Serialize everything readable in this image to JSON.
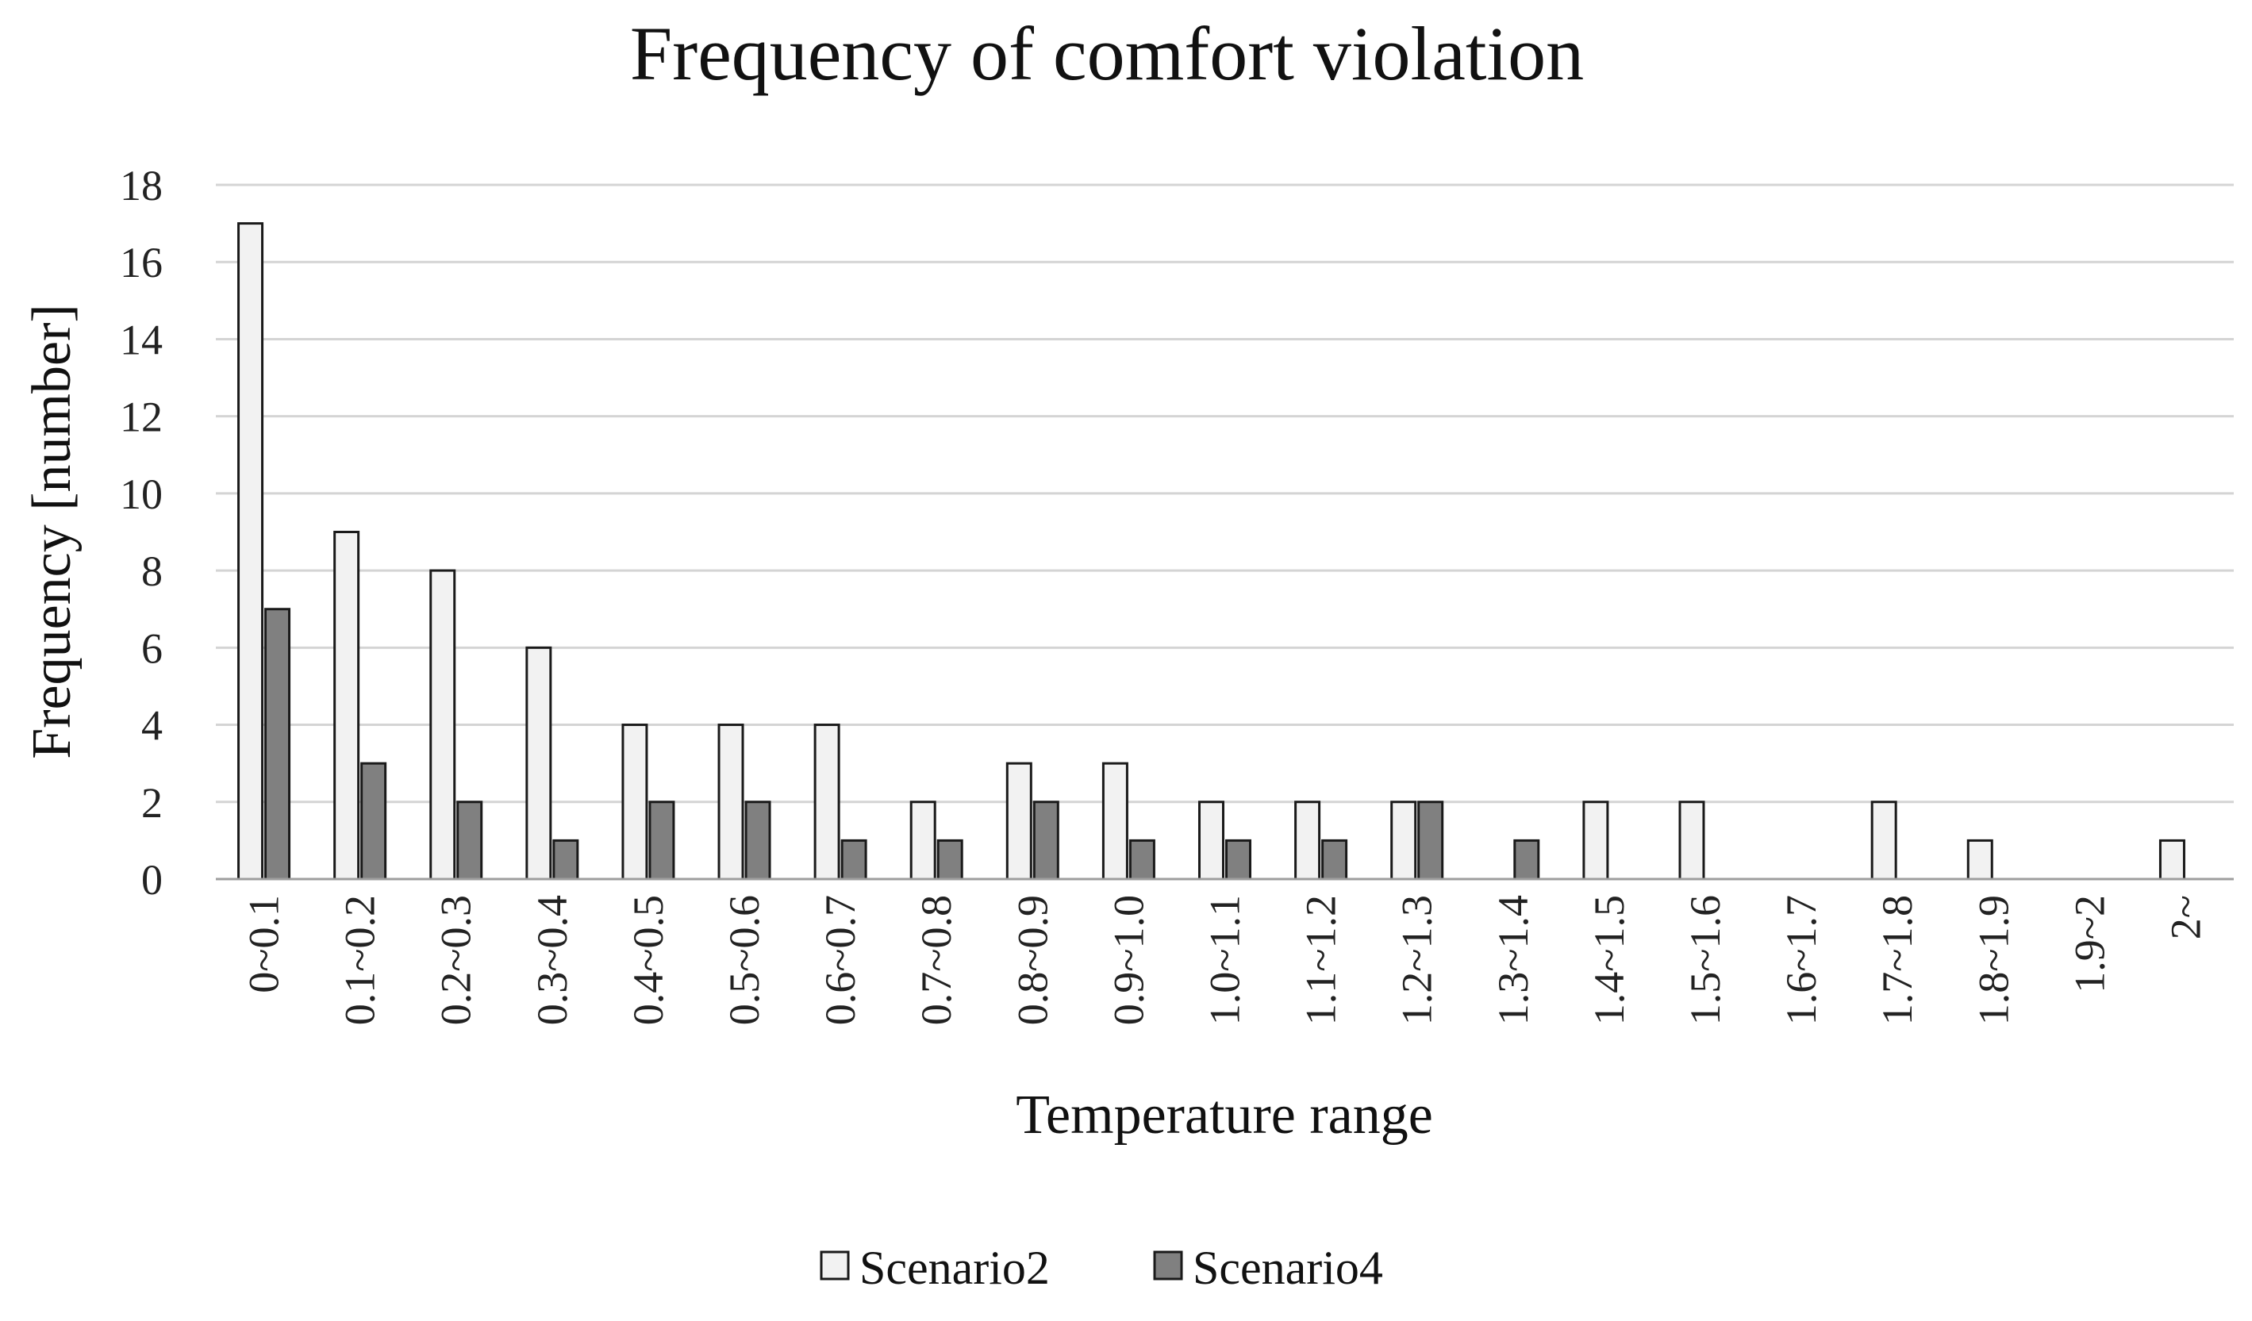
{
  "chart_data": {
    "type": "bar",
    "title": "Frequency  of  comfort  violation",
    "xlabel": "Temperature range",
    "ylabel": "Frequency [number]",
    "ylim": [
      0,
      18
    ],
    "yticks": [
      0,
      2,
      4,
      6,
      8,
      10,
      12,
      14,
      16,
      18
    ],
    "grid": true,
    "legend_position": "bottom",
    "categories": [
      "0~0.1",
      "0.1~0.2",
      "0.2~0.3",
      "0.3~0.4",
      "0.4~0.5",
      "0.5~0.6",
      "0.6~0.7",
      "0.7~0.8",
      "0.8~0.9",
      "0.9~1.0",
      "1.0~1.1",
      "1.1~1.2",
      "1.2~1.3",
      "1.3~1.4",
      "1.4~1.5",
      "1.5~1.6",
      "1.6~1.7",
      "1.7~1.8",
      "1.8~1.9",
      "1.9~2",
      "2~"
    ],
    "series": [
      {
        "name": "Scenario2",
        "color": "#f2f2f2",
        "values": [
          17,
          9,
          8,
          6,
          4,
          4,
          4,
          2,
          3,
          3,
          2,
          2,
          2,
          0,
          2,
          2,
          0,
          2,
          1,
          0,
          1
        ]
      },
      {
        "name": "Scenario4",
        "color": "#808080",
        "values": [
          7,
          3,
          2,
          1,
          2,
          2,
          1,
          1,
          2,
          1,
          1,
          1,
          2,
          1,
          0,
          0,
          0,
          0,
          0,
          0,
          0
        ]
      }
    ]
  }
}
